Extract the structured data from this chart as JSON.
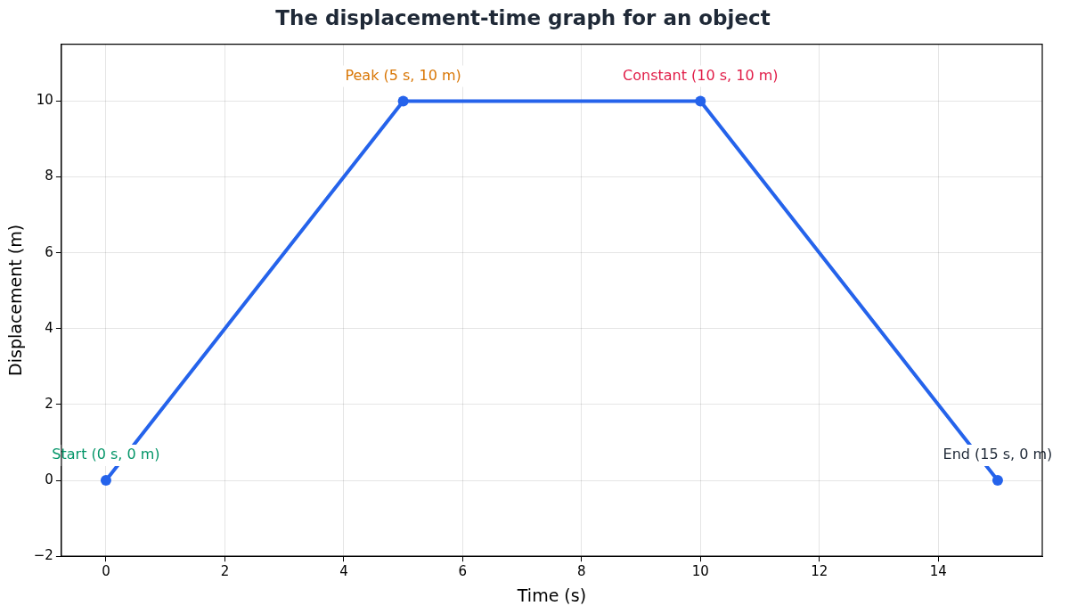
{
  "chart_data": {
    "type": "line",
    "title": "The displacement-time graph for an object",
    "xlabel": "Time (s)",
    "ylabel": "Displacement (m)",
    "x": [
      0,
      5,
      10,
      15
    ],
    "series": [
      {
        "color": "#2563eb",
        "values": [
          0,
          10,
          10,
          0
        ]
      }
    ],
    "xlim": [
      -0.75,
      15.75
    ],
    "xticks": [
      0,
      2,
      4,
      6,
      8,
      10,
      12,
      14
    ],
    "ylim": [
      -2,
      11.5
    ],
    "yticks": [
      {
        "value": -2,
        "label": "−2"
      },
      0,
      2,
      4,
      6,
      8,
      10
    ],
    "grid": true,
    "legend": false,
    "marker": "circle",
    "line_style": "solid",
    "annotations": [
      {
        "text": "Start (0 s, 0 m)",
        "x": 0,
        "y": 0
      },
      {
        "text": "Peak (5 s, 10 m)",
        "x": 5,
        "y": 10
      },
      {
        "text": "Constant (10 s, 10 m)",
        "x": 10,
        "y": 10
      },
      {
        "text": "End (15 s, 0 m)",
        "x": 15,
        "y": 0
      }
    ]
  }
}
